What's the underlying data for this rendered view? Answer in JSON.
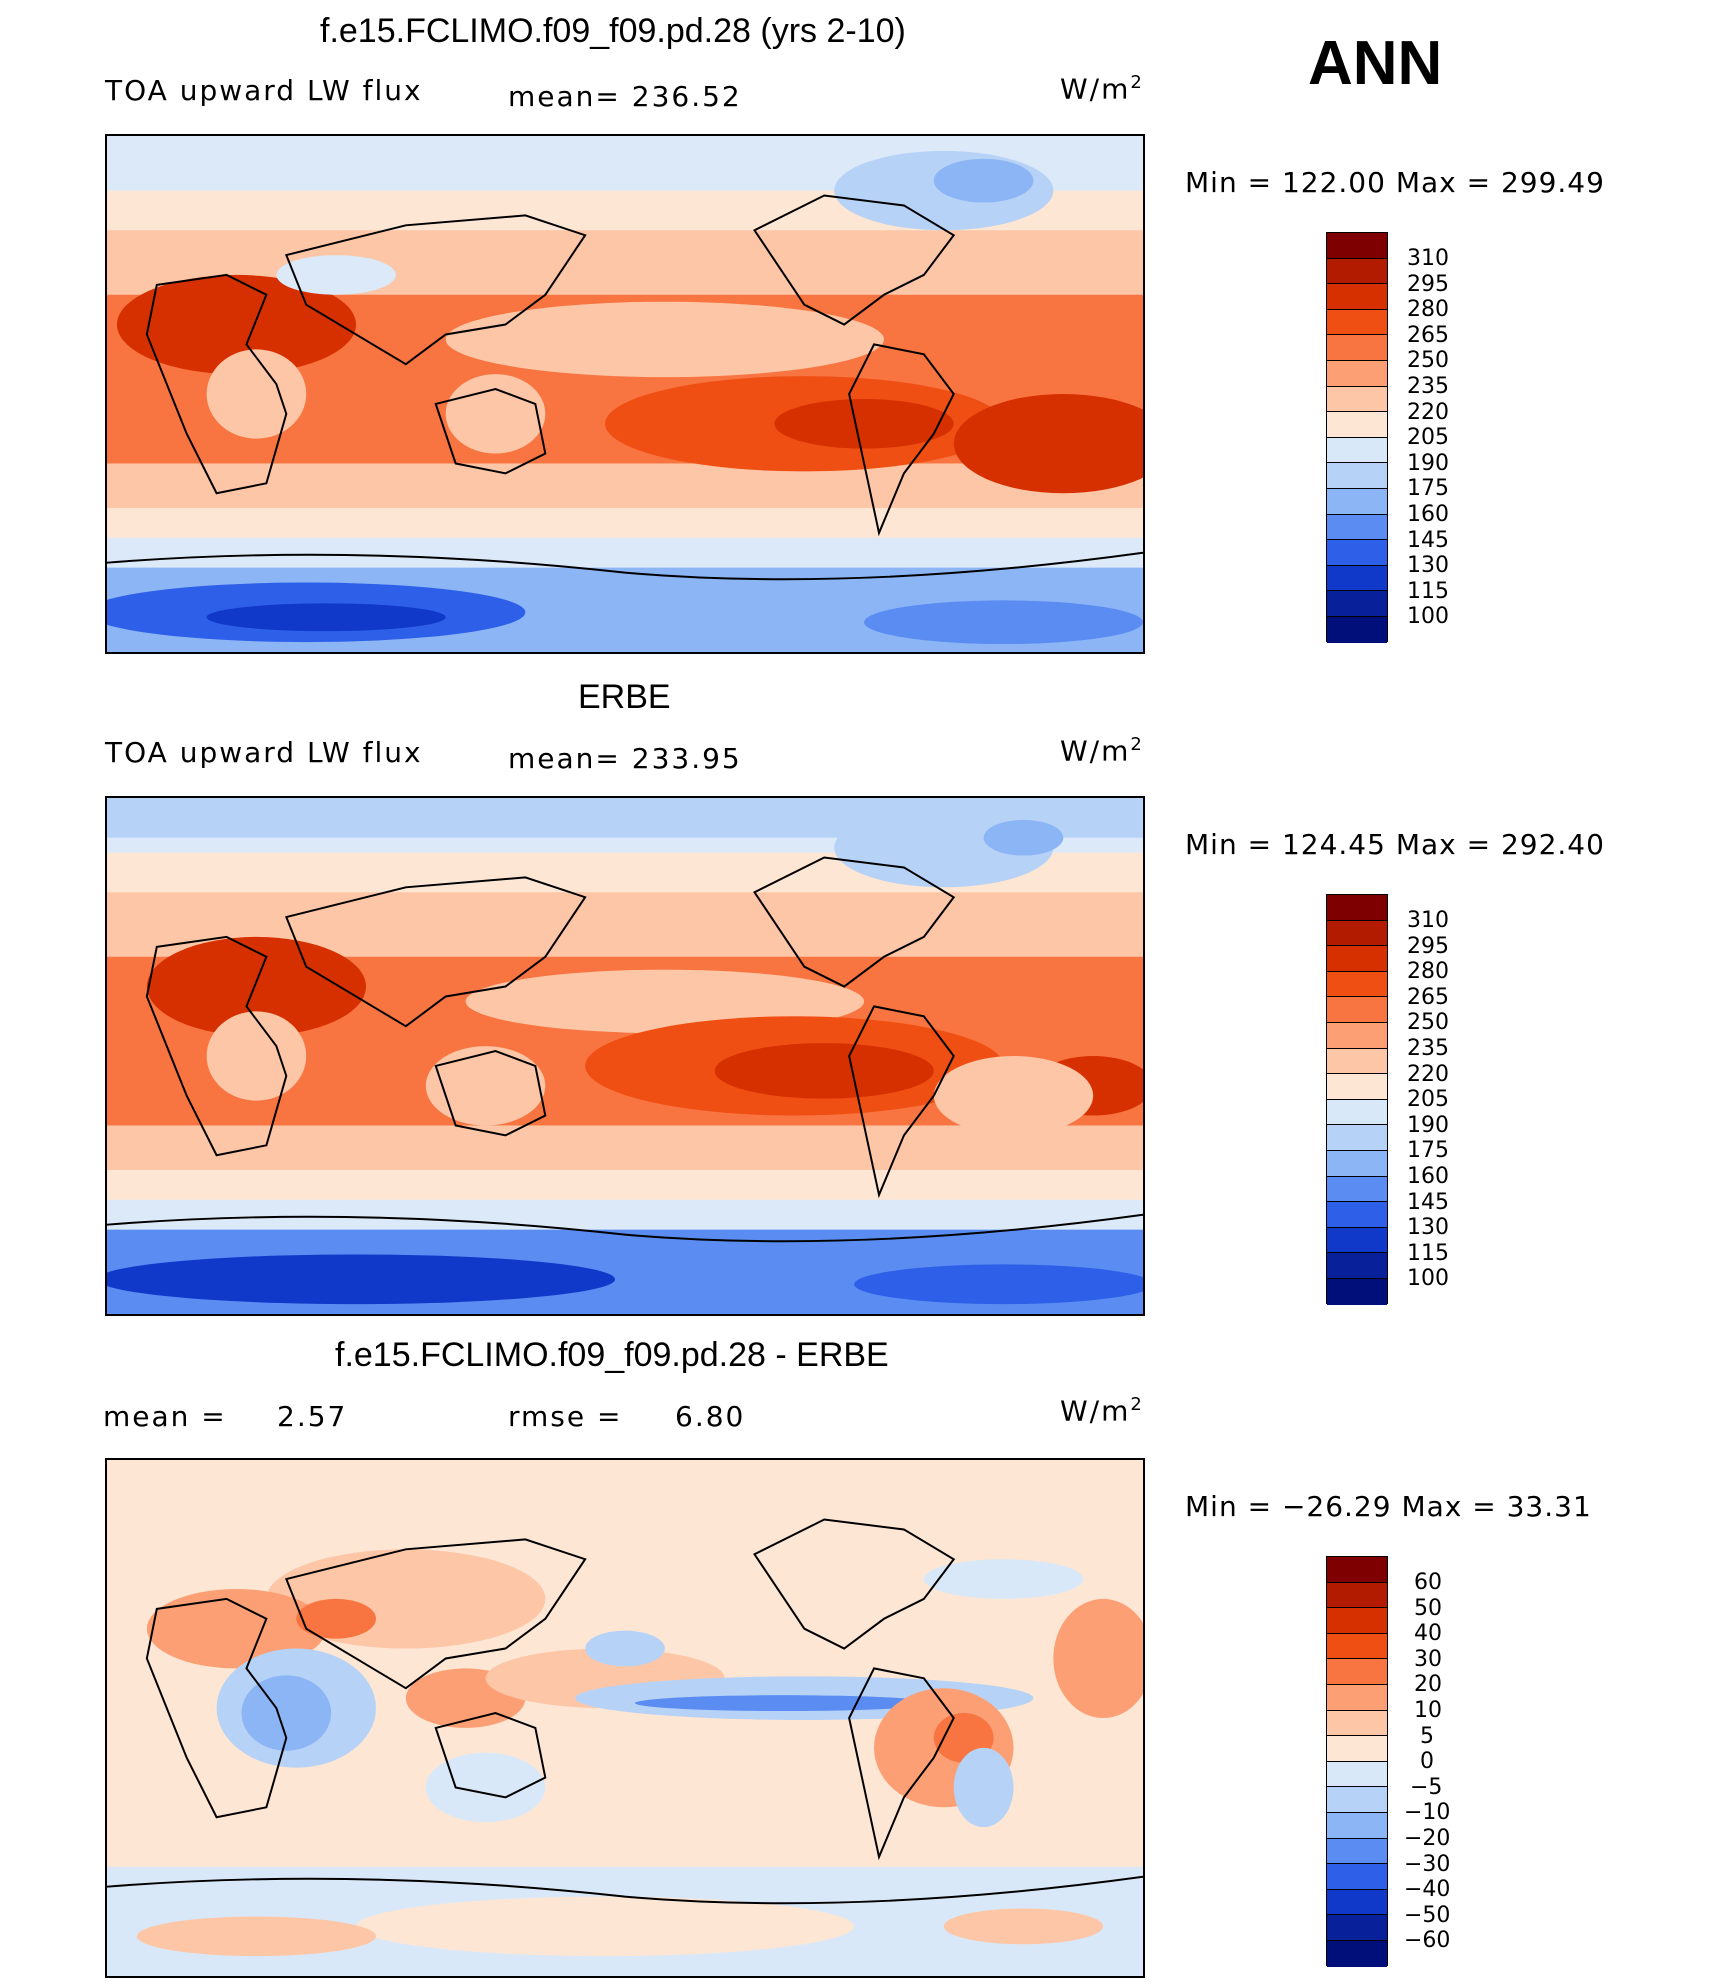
{
  "season": "ANN",
  "panel1": {
    "title": "f.e15.FCLIMO.f09_f09.pd.28 (yrs 2-10)",
    "left_label": "TOA upward LW flux",
    "mean_label": "mean= 236.52",
    "units_label": "W/m",
    "units_exp": "2",
    "minmax": "Min = 122.00 Max = 299.49",
    "legend_ticks": [
      "310",
      "295",
      "280",
      "265",
      "250",
      "235",
      "220",
      "205",
      "190",
      "175",
      "160",
      "145",
      "130",
      "115",
      "100"
    ]
  },
  "panel2": {
    "title": "ERBE",
    "left_label": "TOA upward LW flux",
    "mean_label": "mean= 233.95",
    "units_label": "W/m",
    "units_exp": "2",
    "minmax": "Min = 124.45 Max = 292.40",
    "legend_ticks": [
      "310",
      "295",
      "280",
      "265",
      "250",
      "235",
      "220",
      "205",
      "190",
      "175",
      "160",
      "145",
      "130",
      "115",
      "100"
    ]
  },
  "panel3": {
    "title": "f.e15.FCLIMO.f09_f09.pd.28 - ERBE",
    "mean_text": "mean =",
    "mean_value": "2.57",
    "rmse_text": "rmse =",
    "rmse_value": "6.80",
    "units_label": "W/m",
    "units_exp": "2",
    "minmax": "Min = −26.29 Max =   33.31",
    "legend_ticks": [
      "60",
      "50",
      "40",
      "30",
      "20",
      "10",
      "5",
      "0",
      "−5",
      "−10",
      "−20",
      "−30",
      "−40",
      "−50",
      "−60"
    ]
  },
  "colors": {
    "abs_scale": [
      "#7f0000",
      "#b31b00",
      "#d73000",
      "#f04f14",
      "#f87440",
      "#fc9f74",
      "#fdc6a6",
      "#fde6d4",
      "#d9e8f8",
      "#b7d2f7",
      "#8cb5f6",
      "#5a8cf2",
      "#2d5fe8",
      "#1038c9",
      "#08209a",
      "#000f7a"
    ],
    "diff_scale": [
      "#7f0000",
      "#b31b00",
      "#d73000",
      "#f04f14",
      "#f87440",
      "#fc9f74",
      "#fdc6a6",
      "#fde6d4",
      "#d9e8f8",
      "#b7d2f7",
      "#8cb5f6",
      "#5a8cf2",
      "#2d5fe8",
      "#1038c9",
      "#08209a",
      "#000f7a"
    ]
  }
}
